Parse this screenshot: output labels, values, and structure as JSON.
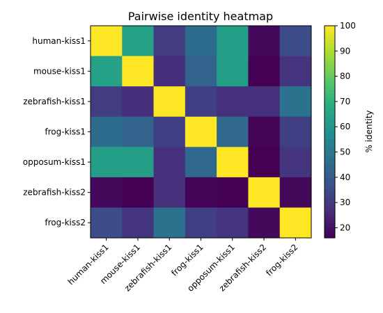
{
  "chart_data": {
    "type": "heatmap",
    "title": "Pairwise identity heatmap",
    "row_labels": [
      "human-kiss1",
      "mouse-kiss1",
      "zebrafish-kiss1",
      "frog-kiss1",
      "opposum-kiss1",
      "zebrafish-kiss2",
      "frog-kiss2"
    ],
    "col_labels": [
      "human-kiss1",
      "mouse-kiss1",
      "zebrafish-kiss1",
      "frog-kiss1",
      "opposum-kiss1",
      "zebrafish-kiss2",
      "frog-kiss2"
    ],
    "values": [
      [
        100,
        64,
        31,
        46,
        63,
        18,
        36
      ],
      [
        64,
        100,
        27,
        43,
        63,
        16,
        29
      ],
      [
        31,
        27,
        100,
        32,
        28,
        28,
        48
      ],
      [
        46,
        43,
        32,
        100,
        45,
        17,
        32
      ],
      [
        63,
        63,
        28,
        45,
        100,
        16,
        29
      ],
      [
        18,
        16,
        28,
        17,
        16,
        100,
        18
      ],
      [
        36,
        29,
        48,
        32,
        29,
        18,
        100
      ]
    ],
    "colormap": "viridis",
    "colorbar": {
      "label": "% identity",
      "vmin": 16,
      "vmax": 100,
      "ticks": [
        20,
        30,
        40,
        50,
        60,
        70,
        80,
        90,
        100
      ]
    },
    "grid": false
  }
}
